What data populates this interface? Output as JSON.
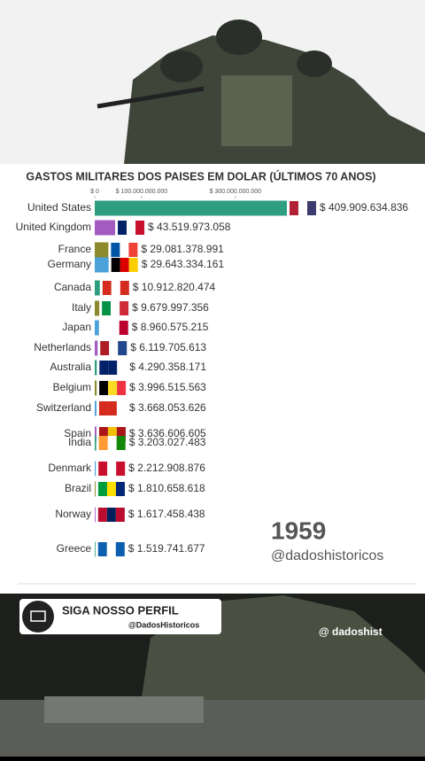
{
  "chart_data": {
    "type": "bar",
    "orientation": "horizontal",
    "title": "GASTOS MILITARES DOS PAISES EM DOLAR (ÚLTIMOS 70 ANOS)",
    "categories": [
      "United States",
      "United Kingdom",
      "France",
      "Germany",
      "Canada",
      "Italy",
      "Japan",
      "Netherlands",
      "Australia",
      "Belgium",
      "Switzerland",
      "Spain",
      "India",
      "Denmark",
      "Brazil",
      "Norway",
      "Greece"
    ],
    "values": [
      409909634836,
      43519973058,
      29081378991,
      29643334161,
      10912820474,
      9679997356,
      8960575215,
      6119705613,
      4290358171,
      3996515563,
      3668053626,
      3636606605,
      3203027483,
      2212908876,
      1810658618,
      1617458438,
      1519741677
    ],
    "value_labels": [
      "$ 409.909.634.836",
      "$ 43.519.973.058",
      "$ 29.081.378.991",
      "$ 29.643.334.161",
      "$ 10.912.820.474",
      "$ 9.679.997.356",
      "$ 8.960.575.215",
      "$ 6.119.705.613",
      "$ 4.290.358.171",
      "$ 3.996.515.563",
      "$ 3.668.053.626",
      "$ 3.636.606.605",
      "$ 3.203.027.483",
      "$ 2.212.908.876",
      "$ 1.810.658.618",
      "$ 1.617.458.438",
      "$ 1.519.741.677"
    ],
    "colors": [
      "#2f9e80",
      "#a45bbf",
      "#8c8a2c",
      "#4ba1d9",
      "#2f9e80",
      "#8c8a2c",
      "#4ba1d9",
      "#a45bbf",
      "#2f9e80",
      "#8c8a2c",
      "#4ba1d9",
      "#a45bbf",
      "#2f9e80",
      "#4ba1d9",
      "#8c8a2c",
      "#a45bbf",
      "#2f9e80"
    ],
    "xlim": [
      0,
      409909634836
    ],
    "xticks": [
      {
        "value": 0,
        "label": "$ 0"
      },
      {
        "value": 100000000000,
        "label": "$ 100.000.000.000"
      },
      {
        "value": 300000000000,
        "label": "$ 300.000.000.000"
      }
    ]
  },
  "year": "1959",
  "watermark": "@dadoshistoricos",
  "banner": {
    "title": "SIGA NOSSO PERFIL",
    "handle": "@DadosHistoricos"
  },
  "tiktok_handle": "@ dadoshist"
}
